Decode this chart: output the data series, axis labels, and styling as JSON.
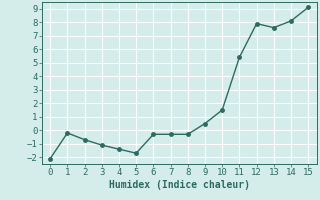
{
  "x": [
    0,
    1,
    2,
    3,
    4,
    5,
    6,
    7,
    8,
    9,
    10,
    11,
    12,
    13,
    14,
    15
  ],
  "y": [
    -2.1,
    -0.2,
    -0.7,
    -1.1,
    -1.4,
    -1.7,
    -0.3,
    -0.3,
    -0.3,
    0.5,
    1.5,
    5.4,
    7.9,
    7.6,
    8.1,
    9.1
  ],
  "line_color": "#2d6b5e",
  "bg_color": "#d4ecea",
  "grid_color": "#ffffff",
  "xlabel": "Humidex (Indice chaleur)",
  "xlabel_fontsize": 7,
  "xlabel_color": "#2d6b5e",
  "tick_color": "#2d6b5e",
  "tick_fontsize": 6.5,
  "xlim": [
    -0.5,
    15.5
  ],
  "ylim": [
    -2.5,
    9.5
  ],
  "yticks": [
    -2,
    -1,
    0,
    1,
    2,
    3,
    4,
    5,
    6,
    7,
    8,
    9
  ],
  "xticks": [
    0,
    1,
    2,
    3,
    4,
    5,
    6,
    7,
    8,
    9,
    10,
    11,
    12,
    13,
    14,
    15
  ],
  "marker": "o",
  "markersize": 2.5,
  "linewidth": 1.0
}
